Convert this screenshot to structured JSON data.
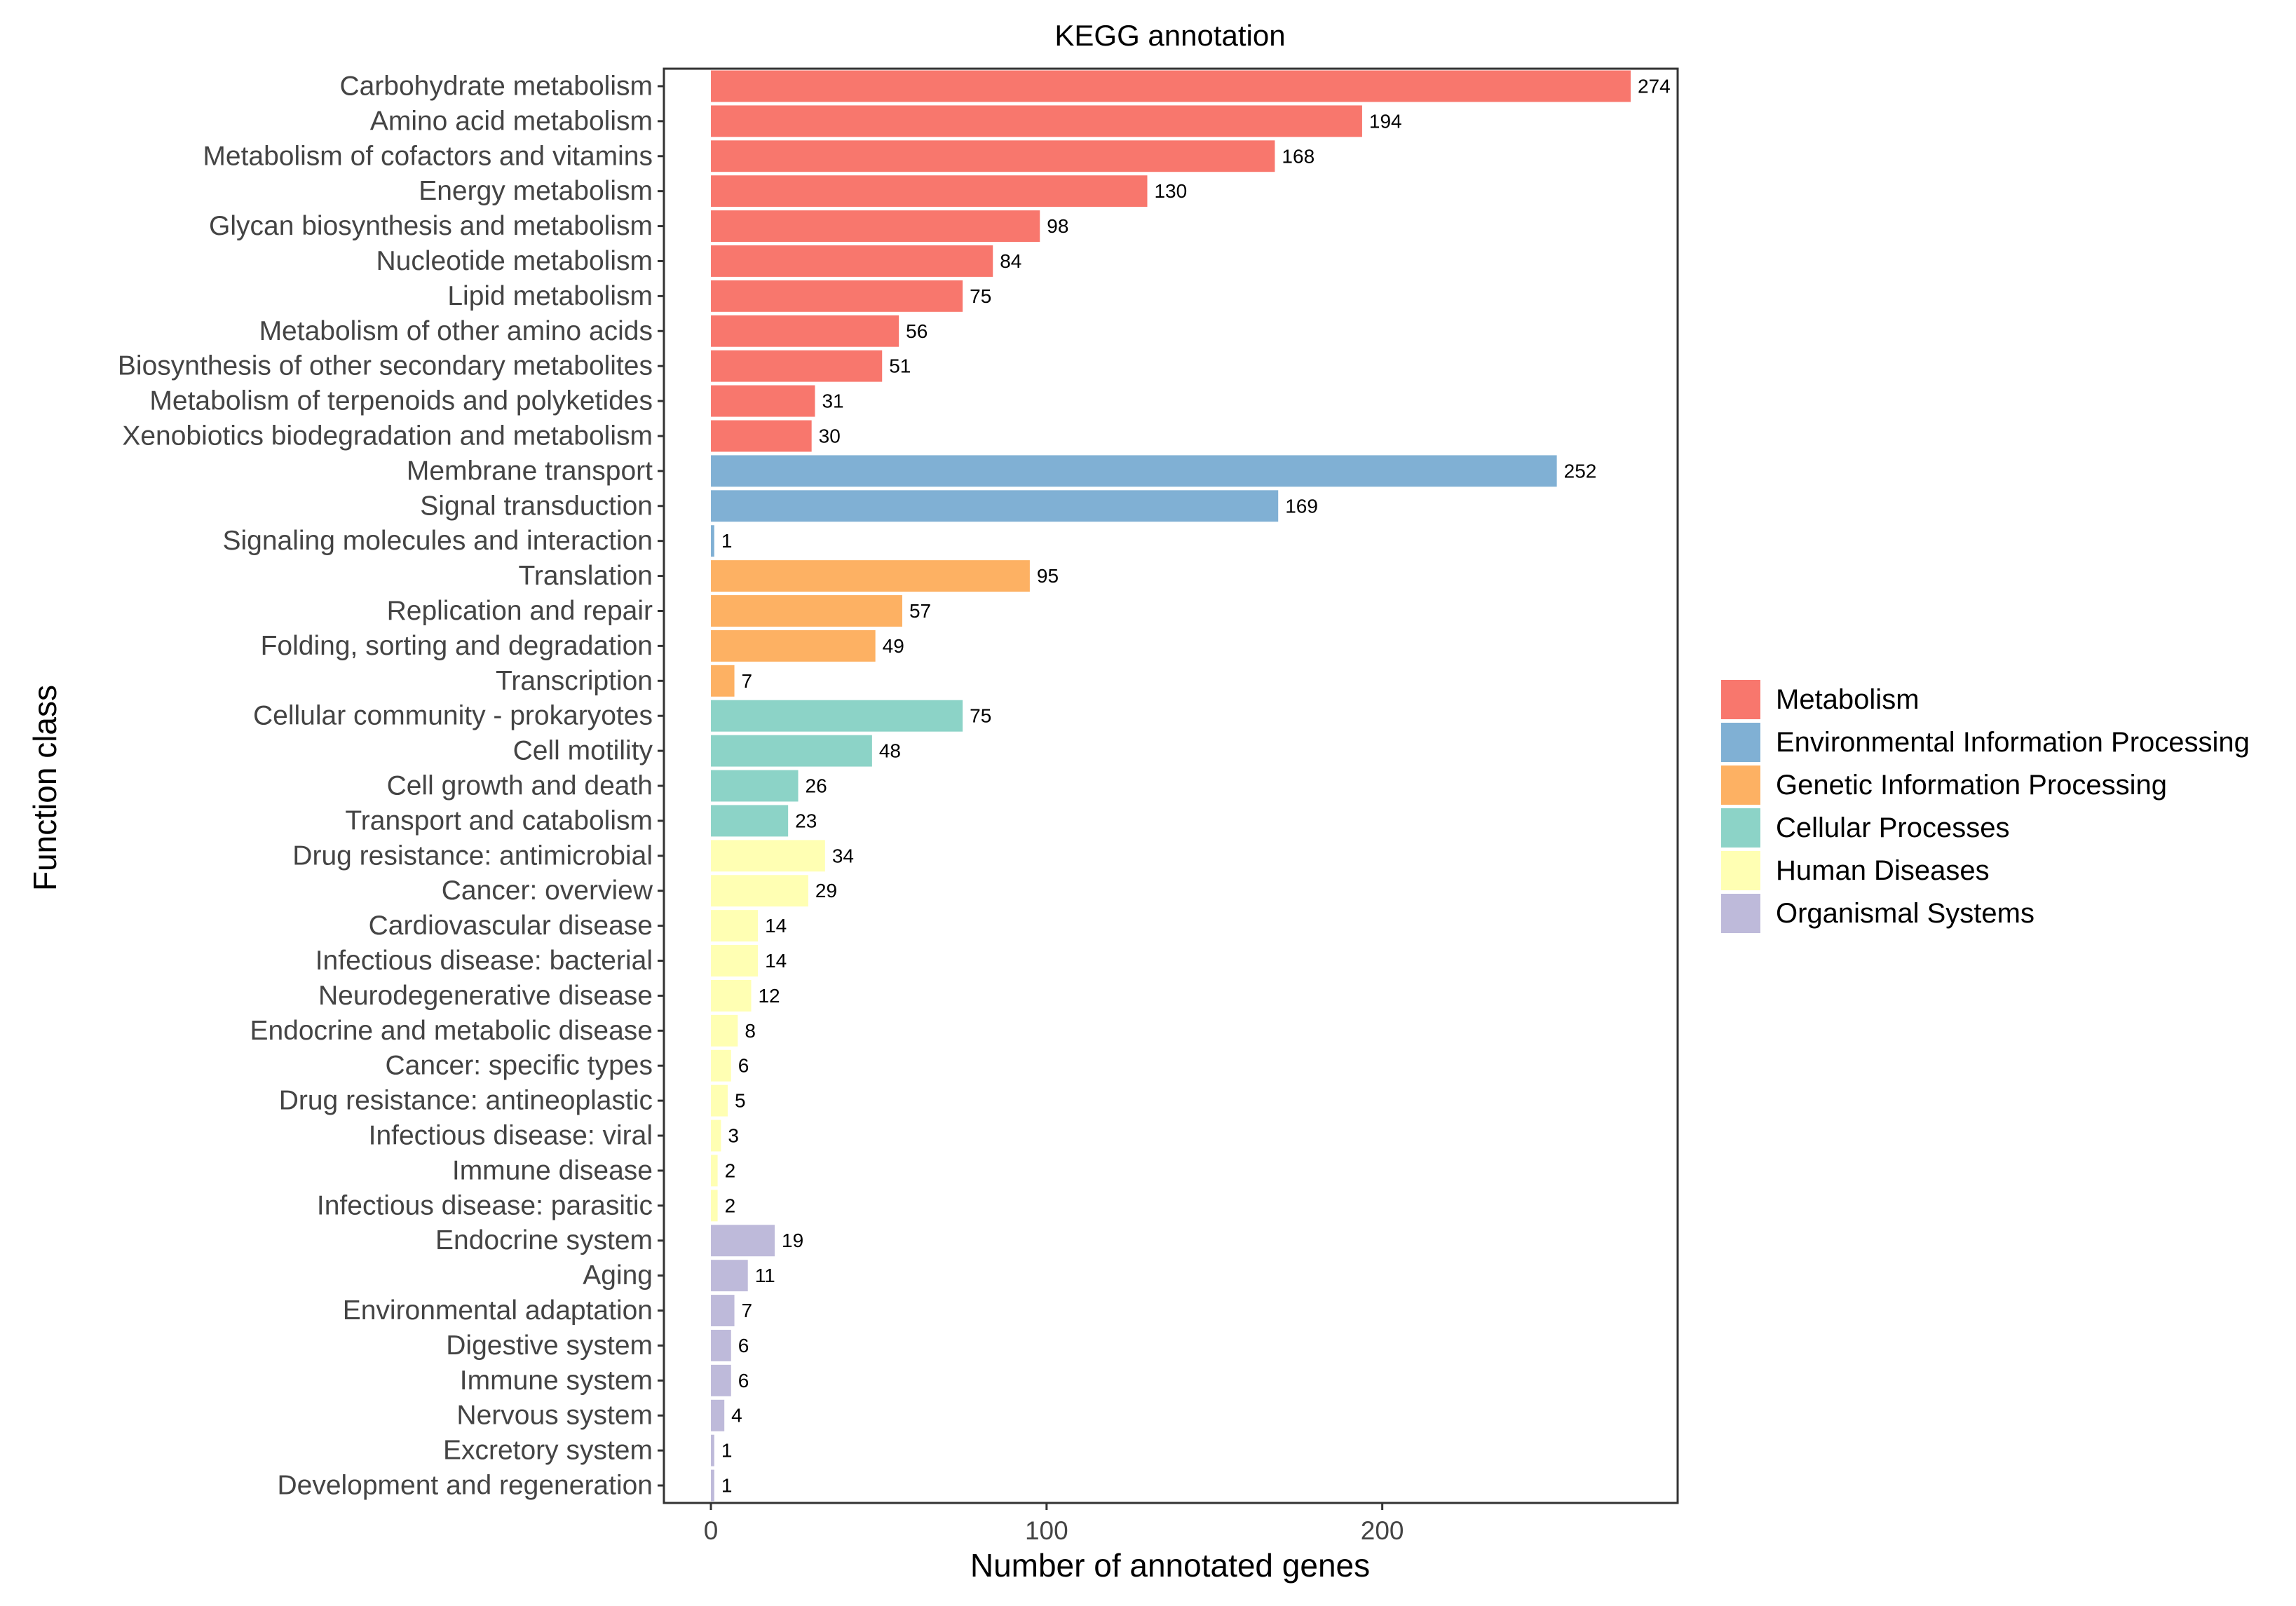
{
  "chart_data": {
    "type": "bar",
    "orientation": "horizontal",
    "title": "KEGG annotation",
    "xlabel": "Number of annotated genes",
    "ylabel": "Function class",
    "xlim": [
      -14,
      288
    ],
    "xticks": [
      0,
      100,
      200
    ],
    "grid": false,
    "legend_position": "right",
    "groups": [
      {
        "name": "Metabolism",
        "color": "#F8776D"
      },
      {
        "name": "Environmental Information Processing",
        "color": "#80B0D4"
      },
      {
        "name": "Genetic Information Processing",
        "color": "#FDB163"
      },
      {
        "name": "Cellular Processes",
        "color": "#8CD3C7"
      },
      {
        "name": "Human Diseases",
        "color": "#FFFFB3"
      },
      {
        "name": "Organismal Systems",
        "color": "#BEBADA"
      }
    ],
    "bars": [
      {
        "category": "Carbohydrate metabolism",
        "value": 274,
        "group": "Metabolism"
      },
      {
        "category": "Amino acid metabolism",
        "value": 194,
        "group": "Metabolism"
      },
      {
        "category": "Metabolism of cofactors and vitamins",
        "value": 168,
        "group": "Metabolism"
      },
      {
        "category": "Energy metabolism",
        "value": 130,
        "group": "Metabolism"
      },
      {
        "category": "Glycan biosynthesis and metabolism",
        "value": 98,
        "group": "Metabolism"
      },
      {
        "category": "Nucleotide metabolism",
        "value": 84,
        "group": "Metabolism"
      },
      {
        "category": "Lipid metabolism",
        "value": 75,
        "group": "Metabolism"
      },
      {
        "category": "Metabolism of other amino acids",
        "value": 56,
        "group": "Metabolism"
      },
      {
        "category": "Biosynthesis of other secondary metabolites",
        "value": 51,
        "group": "Metabolism"
      },
      {
        "category": "Metabolism of terpenoids and polyketides",
        "value": 31,
        "group": "Metabolism"
      },
      {
        "category": "Xenobiotics biodegradation and metabolism",
        "value": 30,
        "group": "Metabolism"
      },
      {
        "category": "Membrane transport",
        "value": 252,
        "group": "Environmental Information Processing"
      },
      {
        "category": "Signal transduction",
        "value": 169,
        "group": "Environmental Information Processing"
      },
      {
        "category": "Signaling molecules and interaction",
        "value": 1,
        "group": "Environmental Information Processing"
      },
      {
        "category": "Translation",
        "value": 95,
        "group": "Genetic Information Processing"
      },
      {
        "category": "Replication and repair",
        "value": 57,
        "group": "Genetic Information Processing"
      },
      {
        "category": "Folding, sorting and degradation",
        "value": 49,
        "group": "Genetic Information Processing"
      },
      {
        "category": "Transcription",
        "value": 7,
        "group": "Genetic Information Processing"
      },
      {
        "category": "Cellular community - prokaryotes",
        "value": 75,
        "group": "Cellular Processes"
      },
      {
        "category": "Cell motility",
        "value": 48,
        "group": "Cellular Processes"
      },
      {
        "category": "Cell growth and death",
        "value": 26,
        "group": "Cellular Processes"
      },
      {
        "category": "Transport and catabolism",
        "value": 23,
        "group": "Cellular Processes"
      },
      {
        "category": "Drug resistance: antimicrobial",
        "value": 34,
        "group": "Human Diseases"
      },
      {
        "category": "Cancer: overview",
        "value": 29,
        "group": "Human Diseases"
      },
      {
        "category": "Cardiovascular disease",
        "value": 14,
        "group": "Human Diseases"
      },
      {
        "category": "Infectious disease: bacterial",
        "value": 14,
        "group": "Human Diseases"
      },
      {
        "category": "Neurodegenerative disease",
        "value": 12,
        "group": "Human Diseases"
      },
      {
        "category": "Endocrine and metabolic disease",
        "value": 8,
        "group": "Human Diseases"
      },
      {
        "category": "Cancer: specific types",
        "value": 6,
        "group": "Human Diseases"
      },
      {
        "category": "Drug resistance: antineoplastic",
        "value": 5,
        "group": "Human Diseases"
      },
      {
        "category": "Infectious disease: viral",
        "value": 3,
        "group": "Human Diseases"
      },
      {
        "category": "Immune disease",
        "value": 2,
        "group": "Human Diseases"
      },
      {
        "category": "Infectious disease: parasitic",
        "value": 2,
        "group": "Human Diseases"
      },
      {
        "category": "Endocrine system",
        "value": 19,
        "group": "Organismal Systems"
      },
      {
        "category": "Aging",
        "value": 11,
        "group": "Organismal Systems"
      },
      {
        "category": "Environmental adaptation",
        "value": 7,
        "group": "Organismal Systems"
      },
      {
        "category": "Digestive system",
        "value": 6,
        "group": "Organismal Systems"
      },
      {
        "category": "Immune system",
        "value": 6,
        "group": "Organismal Systems"
      },
      {
        "category": "Nervous system",
        "value": 4,
        "group": "Organismal Systems"
      },
      {
        "category": "Excretory system",
        "value": 1,
        "group": "Organismal Systems"
      },
      {
        "category": "Development and regeneration",
        "value": 1,
        "group": "Organismal Systems"
      }
    ]
  }
}
